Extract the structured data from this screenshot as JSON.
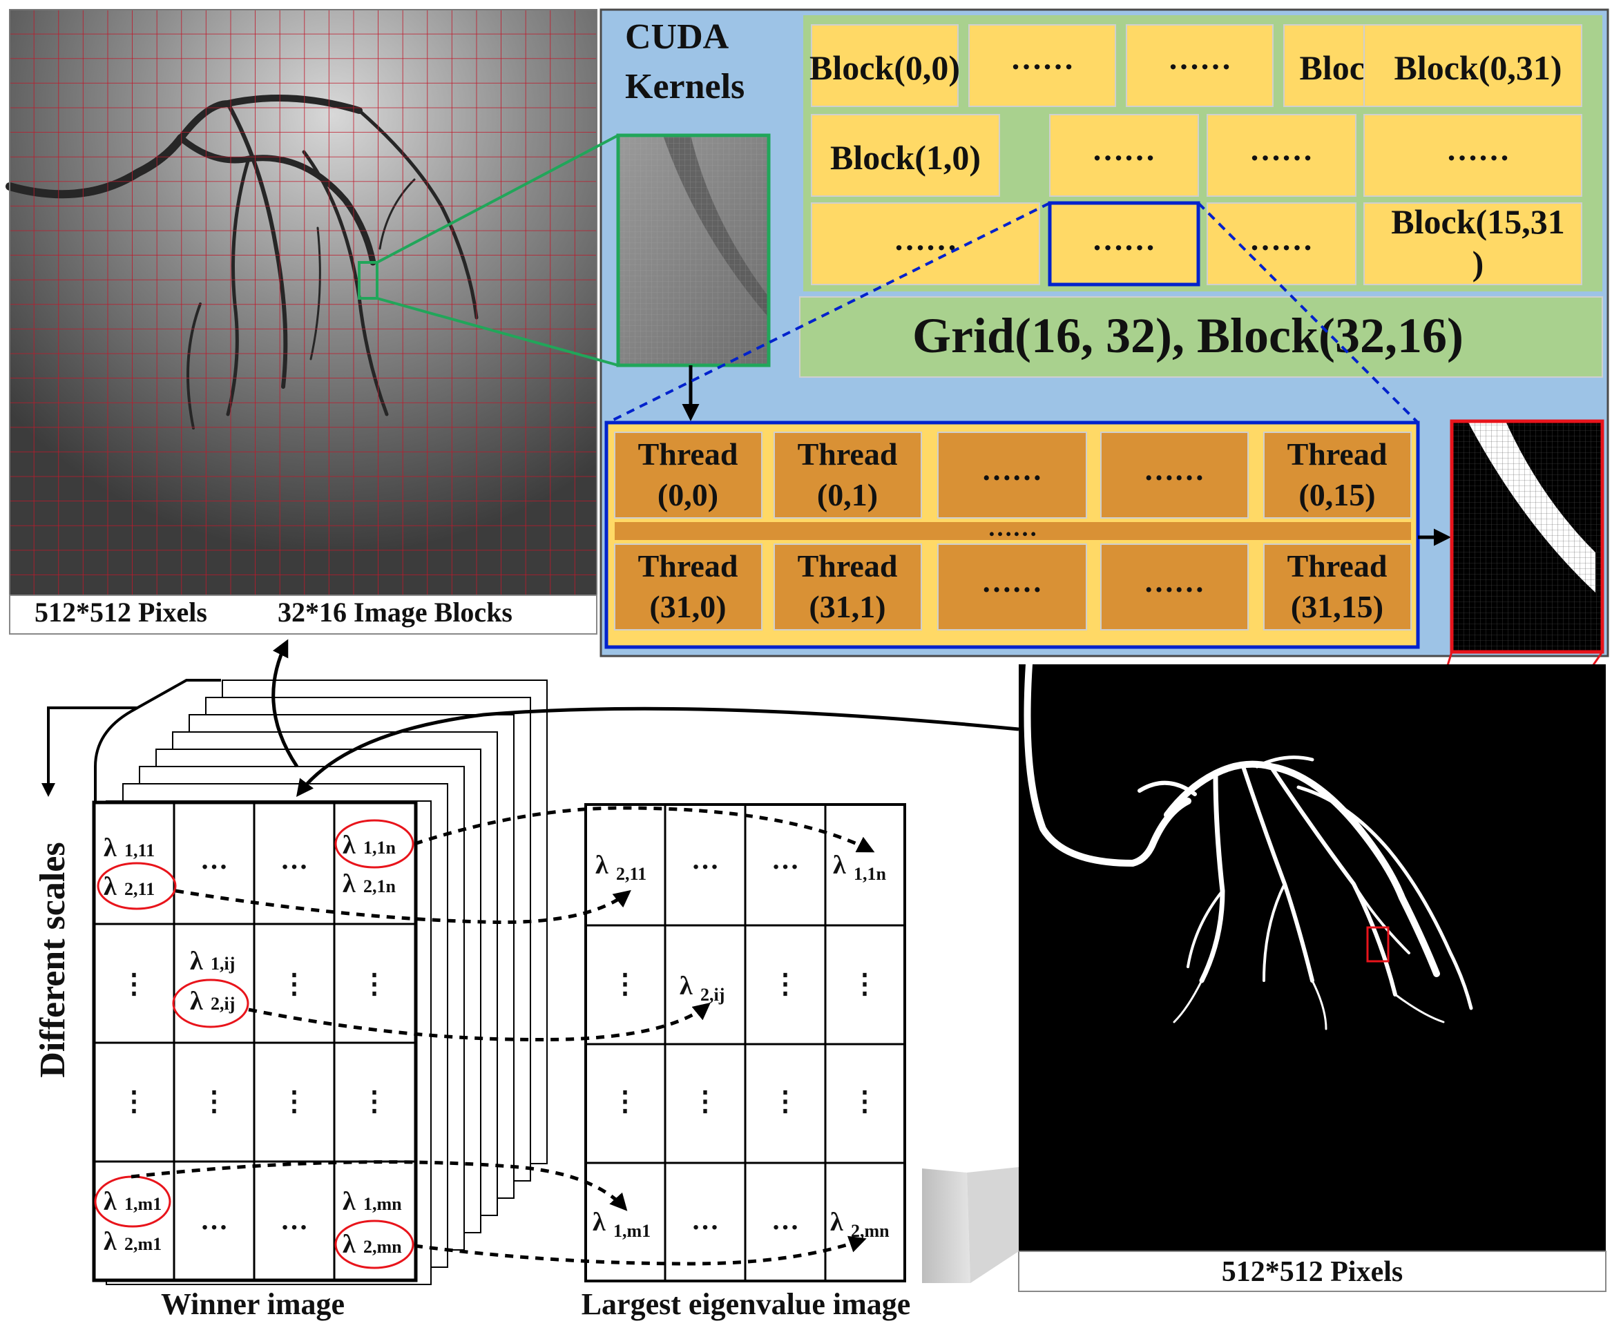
{
  "angiogram": {
    "caption_pixels": "512*512 Pixels",
    "caption_blocks": "32*16 Image Blocks"
  },
  "cuda": {
    "title_line1": "CUDA",
    "title_line2": "Kernels",
    "blocks": [
      [
        "Block(0,0)",
        "……",
        "……",
        "Block(0,31)"
      ],
      [
        "Block(1,0)",
        "……",
        "……",
        "……"
      ],
      [
        "……",
        "……",
        "……",
        "Block(15,31"
      ]
    ],
    "block_wrap": ")",
    "grid_label": "Grid(16, 32), Block(32,16)",
    "threads_top": [
      [
        "Thread",
        "(0,0)"
      ],
      [
        "Thread",
        "(0,1)"
      ],
      [
        "……",
        ""
      ],
      [
        "……",
        ""
      ],
      [
        "Thread",
        "(0,15)"
      ]
    ],
    "threads_mid": "……",
    "threads_bottom": [
      [
        "Thread",
        "(31,0)"
      ],
      [
        "Thread",
        "(31,1)"
      ],
      [
        "……",
        ""
      ],
      [
        "……",
        ""
      ],
      [
        "Thread",
        "(31,15)"
      ]
    ]
  },
  "segmentation": {
    "caption": "512*512 Pixels"
  },
  "winner": {
    "side_label": "Different scales",
    "caption": "Winner image",
    "lambda": "λ",
    "r1c1_a": "1,11",
    "r1c1_b": "2,11",
    "r1c4_a": "1,1n",
    "r1c4_b": "2,1n",
    "r2c2_a": "1,ij",
    "r2c2_b": "2,ij",
    "r4c1_a": "1,m1",
    "r4c1_b": "2,m1",
    "r4c4_a": "1,mn",
    "r4c4_b": "2,mn",
    "hdots": "…",
    "vdots": "⋮"
  },
  "largest": {
    "caption": "Largest eigenvalue image",
    "r1c1": "2,11",
    "r1c4": "1,1n",
    "r2c2": "2,ij",
    "r4c1": "1,m1",
    "r4c4": "2,mn"
  },
  "colors": {
    "panel_blue": "#9dc3e6",
    "grid_green": "#a9d18e",
    "block_yellow": "#ffd966",
    "thread_orange": "#d99135",
    "highlight_blue": "#0022cc",
    "highlight_green": "#21a65a",
    "highlight_red": "#e8141b"
  }
}
